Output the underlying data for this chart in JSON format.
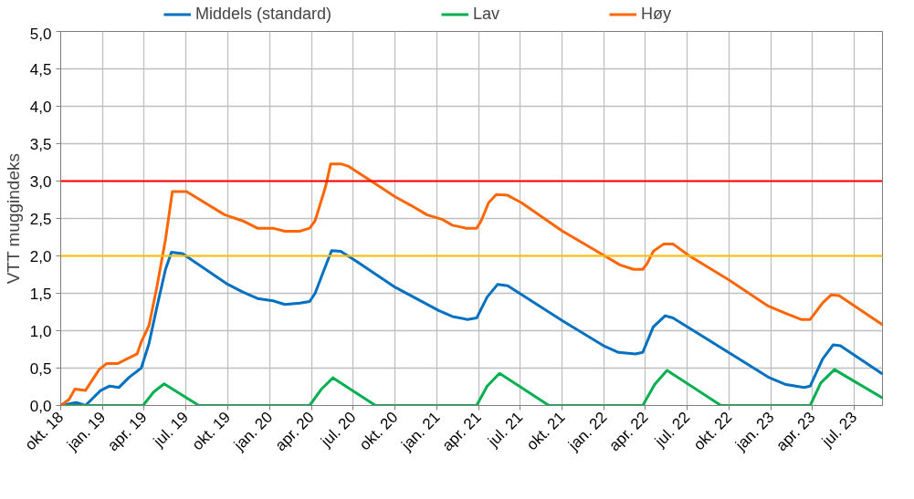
{
  "chart_data": {
    "type": "line",
    "ylabel": "VTT muggindeks",
    "legend": "top",
    "grid": true,
    "marker": "none",
    "line_style": "solid",
    "xlim": [
      "2018-10-01",
      "2023-09-01"
    ],
    "xticks": [
      {
        "value": "2018-10-01",
        "label": "okt. 18"
      },
      {
        "value": "2019-01-01",
        "label": "jan. 19"
      },
      {
        "value": "2019-04-01",
        "label": "apr. 19"
      },
      {
        "value": "2019-07-01",
        "label": "jul. 19"
      },
      {
        "value": "2019-10-01",
        "label": "okt. 19"
      },
      {
        "value": "2020-01-01",
        "label": "jan. 20"
      },
      {
        "value": "2020-04-01",
        "label": "apr. 20"
      },
      {
        "value": "2020-07-01",
        "label": "jul. 20"
      },
      {
        "value": "2020-10-01",
        "label": "okt. 20"
      },
      {
        "value": "2021-01-01",
        "label": "jan. 21"
      },
      {
        "value": "2021-04-01",
        "label": "apr. 21"
      },
      {
        "value": "2021-07-01",
        "label": "jul. 21"
      },
      {
        "value": "2021-10-01",
        "label": "okt. 21"
      },
      {
        "value": "2022-01-01",
        "label": "jan. 22"
      },
      {
        "value": "2022-04-01",
        "label": "apr. 22"
      },
      {
        "value": "2022-07-01",
        "label": "jul. 22"
      },
      {
        "value": "2022-10-01",
        "label": "okt. 22"
      },
      {
        "value": "2023-01-01",
        "label": "jan. 23"
      },
      {
        "value": "2023-04-01",
        "label": "apr. 23"
      },
      {
        "value": "2023-07-01",
        "label": "jul. 23"
      }
    ],
    "ylim": [
      0,
      5
    ],
    "yticks": [
      {
        "value": 0,
        "label": "0,0"
      },
      {
        "value": 0.5,
        "label": "0,5"
      },
      {
        "value": 1,
        "label": "1,0"
      },
      {
        "value": 1.5,
        "label": "1,5"
      },
      {
        "value": 2,
        "label": "2,0"
      },
      {
        "value": 2.5,
        "label": "2,5"
      },
      {
        "value": 3,
        "label": "3,0"
      },
      {
        "value": 3.5,
        "label": "3,5"
      },
      {
        "value": 4,
        "label": "4,0"
      },
      {
        "value": 4.5,
        "label": "4,5"
      },
      {
        "value": 5,
        "label": "5,0"
      }
    ],
    "ref_lines": [
      {
        "axis": "y",
        "value": 3,
        "color": "#ff0000"
      },
      {
        "axis": "y",
        "value": 2,
        "color": "#ffc000"
      }
    ],
    "series": [
      {
        "name": "Middels (standard)",
        "color": "#0070c0",
        "x": [
          "2018-10-01",
          "2018-11-04",
          "2018-11-24",
          "2018-12-27",
          "2019-01-16",
          "2019-02-05",
          "2019-02-28",
          "2019-03-26",
          "2019-04-12",
          "2019-04-29",
          "2019-05-18",
          "2019-05-31",
          "2019-06-24",
          "2019-10-01",
          "2019-11-02",
          "2019-12-05",
          "2020-01-08",
          "2020-02-03",
          "2020-03-07",
          "2020-03-28",
          "2020-04-09",
          "2020-04-29",
          "2020-05-15",
          "2020-06-04",
          "2020-07-10",
          "2020-10-01",
          "2021-01-04",
          "2021-02-03",
          "2021-03-08",
          "2021-03-28",
          "2021-04-20",
          "2021-05-13",
          "2021-06-04",
          "2021-10-02",
          "2022-01-02",
          "2022-02-01",
          "2022-03-10",
          "2022-03-26",
          "2022-04-18",
          "2022-05-14",
          "2022-05-31",
          "2022-12-25",
          "2023-02-02",
          "2023-03-14",
          "2023-03-27",
          "2023-04-23",
          "2023-05-16",
          "2023-06-01",
          "2023-09-01"
        ],
        "values": [
          0,
          0.04,
          0,
          0.2,
          0.26,
          0.24,
          0.38,
          0.5,
          0.83,
          1.31,
          1.82,
          2.05,
          2.03,
          1.62,
          1.52,
          1.43,
          1.4,
          1.35,
          1.37,
          1.39,
          1.5,
          1.82,
          2.07,
          2.06,
          1.92,
          1.58,
          1.27,
          1.19,
          1.15,
          1.17,
          1.45,
          1.62,
          1.6,
          1.13,
          0.79,
          0.71,
          0.69,
          0.71,
          1.05,
          1.2,
          1.17,
          0.38,
          0.28,
          0.24,
          0.26,
          0.62,
          0.81,
          0.8,
          0.42
        ]
      },
      {
        "name": "Lav",
        "color": "#00b050",
        "x": [
          "2018-10-01",
          "2019-03-30",
          "2019-04-22",
          "2019-05-15",
          "2019-07-30",
          "2020-03-28",
          "2020-04-23",
          "2020-05-18",
          "2020-08-19",
          "2021-03-28",
          "2021-04-20",
          "2021-05-17",
          "2021-09-02",
          "2022-03-26",
          "2022-04-21",
          "2022-05-18",
          "2022-09-13",
          "2023-03-27",
          "2023-04-19",
          "2023-05-19",
          "2023-09-01"
        ],
        "values": [
          0,
          0,
          0.18,
          0.29,
          0,
          0,
          0.22,
          0.37,
          0,
          0,
          0.26,
          0.43,
          0,
          0,
          0.28,
          0.47,
          0,
          0,
          0.3,
          0.48,
          0.1
        ]
      },
      {
        "name": "Høy",
        "color": "#ff6600",
        "x": [
          "2018-10-01",
          "2018-10-19",
          "2018-11-01",
          "2018-11-24",
          "2018-12-24",
          "2019-01-09",
          "2019-02-02",
          "2019-03-17",
          "2019-03-26",
          "2019-04-12",
          "2019-04-29",
          "2019-05-18",
          "2019-06-02",
          "2019-07-03",
          "2019-09-24",
          "2019-11-02",
          "2019-12-05",
          "2020-01-08",
          "2020-02-03",
          "2020-03-07",
          "2020-03-28",
          "2020-04-09",
          "2020-05-02",
          "2020-05-13",
          "2020-06-04",
          "2020-06-20",
          "2020-08-12",
          "2020-10-01",
          "2020-11-06",
          "2020-12-09",
          "2021-01-11",
          "2021-02-03",
          "2021-03-05",
          "2021-03-28",
          "2021-04-07",
          "2021-04-23",
          "2021-05-10",
          "2021-06-04",
          "2021-07-04",
          "2021-10-02",
          "2022-01-02",
          "2022-02-04",
          "2022-03-06",
          "2022-03-26",
          "2022-04-05",
          "2022-04-18",
          "2022-05-11",
          "2022-05-31",
          "2022-07-06",
          "2022-09-30",
          "2022-12-25",
          "2023-02-02",
          "2023-03-07",
          "2023-03-27",
          "2023-04-23",
          "2023-05-12",
          "2023-05-29",
          "2023-09-01"
        ],
        "values": [
          0,
          0.08,
          0.22,
          0.2,
          0.48,
          0.56,
          0.56,
          0.69,
          0.85,
          1.07,
          1.58,
          2.22,
          2.86,
          2.86,
          2.55,
          2.47,
          2.37,
          2.37,
          2.33,
          2.33,
          2.37,
          2.47,
          2.93,
          3.23,
          3.23,
          3.2,
          2.99,
          2.79,
          2.67,
          2.55,
          2.49,
          2.41,
          2.37,
          2.37,
          2.47,
          2.71,
          2.82,
          2.81,
          2.71,
          2.33,
          2.0,
          1.88,
          1.82,
          1.82,
          1.9,
          2.06,
          2.16,
          2.16,
          2.0,
          1.68,
          1.33,
          1.23,
          1.15,
          1.15,
          1.37,
          1.48,
          1.47,
          1.08
        ]
      }
    ]
  }
}
